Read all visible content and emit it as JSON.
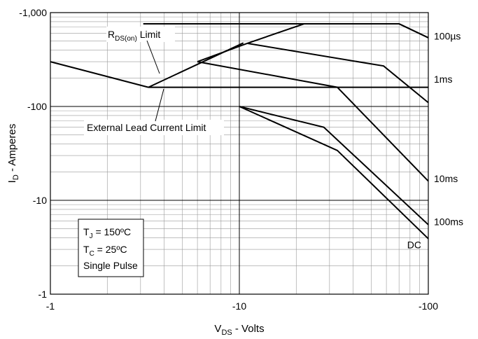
{
  "chart_data": {
    "type": "line",
    "title": "",
    "xlabel": {
      "main": "V",
      "sub": "DS",
      "rest": " - Volts"
    },
    "ylabel": {
      "main": "I",
      "sub": "D",
      "rest": " - Amperes"
    },
    "x_scale": "log",
    "y_scale": "log",
    "xlim": [
      -1,
      -100
    ],
    "ylim": [
      -1,
      -1000
    ],
    "x_ticks": [
      {
        "value": -1,
        "label": "-1"
      },
      {
        "value": -10,
        "label": "-10"
      },
      {
        "value": -100,
        "label": "-100"
      }
    ],
    "y_ticks": [
      {
        "value": -1,
        "label": "-1"
      },
      {
        "value": -10,
        "label": "-10"
      },
      {
        "value": -100,
        "label": "-100"
      },
      {
        "value": -1000,
        "label": "-1,000"
      }
    ],
    "grid": true,
    "series": [
      {
        "name": "100µs",
        "points": [
          [
            -3.1,
            -760
          ],
          [
            -70,
            -760
          ],
          [
            -100,
            -540
          ]
        ]
      },
      {
        "name": "1ms",
        "points": [
          [
            -11,
            -470
          ],
          [
            -22,
            -760
          ],
          [
            -70,
            -760
          ],
          [
            -100,
            -540
          ]
        ]
      },
      {
        "name": "10ms",
        "points": [
          [
            -11,
            -470
          ],
          [
            -58,
            -270
          ],
          [
            -100,
            -110
          ]
        ]
      },
      {
        "name": "100ms",
        "points": [
          [
            -6,
            -300
          ],
          [
            -11,
            -470
          ]
        ]
      },
      {
        "name": "",
        "points": [
          [
            -6,
            -300
          ],
          [
            -33,
            -160
          ],
          [
            -100,
            -16
          ]
        ]
      },
      {
        "name": "",
        "points": [
          [
            -6,
            -160
          ],
          [
            -3.3,
            -160
          ],
          [
            -10.5,
            -475
          ]
        ]
      },
      {
        "name": "DC",
        "points": [
          [
            -10,
            -100
          ],
          [
            -28,
            -60
          ],
          [
            -100,
            -5.5
          ]
        ]
      },
      {
        "name": "",
        "points": [
          [
            -1,
            -300
          ],
          [
            -3.3,
            -160
          ]
        ]
      },
      {
        "name": "",
        "points": [
          [
            -10,
            -100
          ],
          [
            -33,
            -34
          ],
          [
            -100,
            -3.9
          ]
        ]
      },
      {
        "name": "",
        "points": [
          [
            -6,
            -160
          ],
          [
            -100,
            -160
          ]
        ]
      }
    ],
    "line_labels": [
      {
        "text": "100µs",
        "x": -100,
        "y": -560
      },
      {
        "text": "1ms",
        "x": -100,
        "y": -195
      },
      {
        "text": "10ms",
        "x": -100,
        "y": -17
      },
      {
        "text": "100ms",
        "x": -100,
        "y": -5.9
      },
      {
        "text": "DC",
        "x": -100,
        "y": -3.35
      }
    ],
    "annotations": [
      {
        "main": "R",
        "sub": "DS(on)",
        "rest": " Limit"
      },
      {
        "main": "External Lead Current Limit"
      }
    ],
    "legend_box": [
      {
        "main": "T",
        "sub": "J",
        "rest": " = 150ºC"
      },
      {
        "main": "T",
        "sub": "C",
        "rest": " = 25ºC"
      },
      {
        "main": "Single Pulse"
      }
    ]
  }
}
